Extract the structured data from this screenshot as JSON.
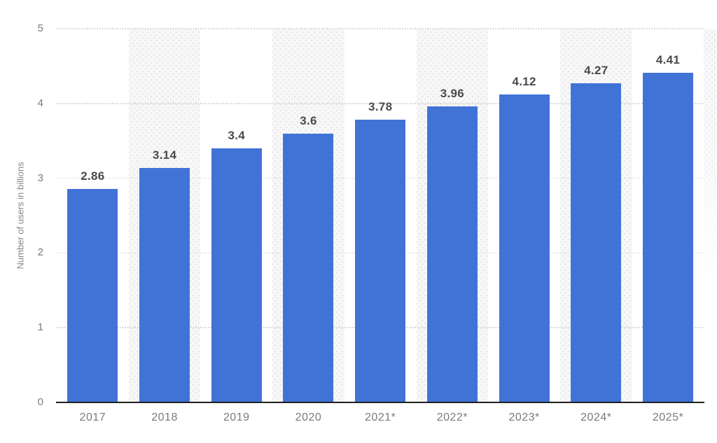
{
  "chart_data": {
    "type": "bar",
    "title": "",
    "xlabel": "",
    "ylabel": "Number of users in billions",
    "categories": [
      "2017",
      "2018",
      "2019",
      "2020",
      "2021*",
      "2022*",
      "2023*",
      "2024*",
      "2025*"
    ],
    "values": [
      2.86,
      3.14,
      3.4,
      3.6,
      3.78,
      3.96,
      4.12,
      4.27,
      4.41
    ],
    "value_labels": [
      "2.86",
      "3.14",
      "3.4",
      "3.6",
      "3.78",
      "3.96",
      "4.12",
      "4.27",
      "4.41"
    ],
    "ylim": [
      0,
      5
    ],
    "yticks": [
      "0",
      "1",
      "2",
      "3",
      "4",
      "5"
    ],
    "grid": "horizontal-dotted",
    "legend": "none",
    "striped_category_indices": [
      1,
      3,
      5,
      7
    ],
    "colors": {
      "bar": "#4173d7",
      "value_label": "#4a4a4a",
      "tick_label": "#7a7a7a",
      "axis_title": "#858585",
      "gridline": "#d2d2d2",
      "stripe_bg": "#f7f7f8",
      "stripe_dot": "#e4e4e8",
      "baseline": "#1f1f1f",
      "background": "#ffffff"
    }
  }
}
